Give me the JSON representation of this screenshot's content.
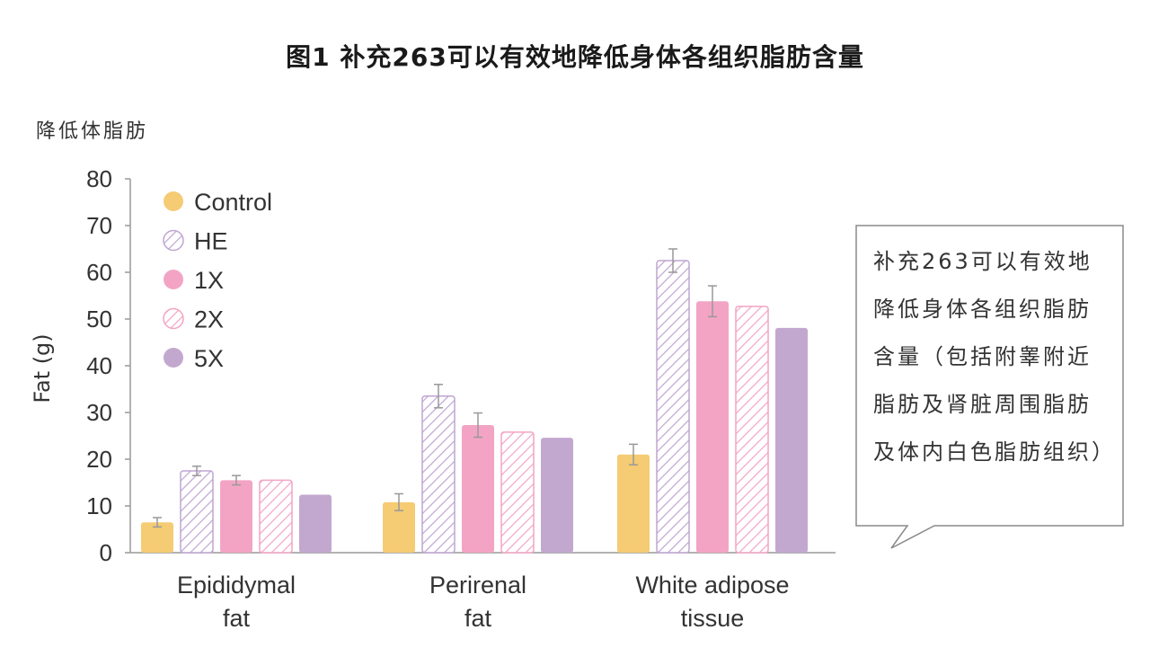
{
  "figure_title": "图1 补充263可以有效地降低身体各组织脂肪含量",
  "subtitle": "降低体脂肪",
  "callout_text": "补充263可以有效地降低身体各组织脂肪含量（包括附睾附近脂肪及肾脏周围脂肪及体内白色脂肪组织）",
  "colors": {
    "Control": "#f5cb74",
    "HE": "#bfa5d2",
    "1X": "#f3a4c4",
    "2X": "#f3a4c4",
    "5X": "#c2a8cf",
    "axis": "#999999",
    "error_bar": "#999999"
  },
  "chart_data": {
    "type": "bar",
    "ylabel": "Fat (g)",
    "ylim": [
      0,
      80
    ],
    "yticks": [
      0,
      10,
      20,
      30,
      40,
      50,
      60,
      70,
      80
    ],
    "grid": false,
    "legend_position": "top-left",
    "categories": [
      [
        "Epididymal",
        "fat"
      ],
      [
        "Perirenal",
        "fat"
      ],
      [
        "White adipose",
        "tissue"
      ]
    ],
    "series": [
      {
        "name": "Control",
        "pattern": "solid",
        "values": [
          6.5,
          10.8,
          21.0
        ],
        "errors": [
          1.0,
          1.8,
          2.2
        ]
      },
      {
        "name": "HE",
        "pattern": "hatched",
        "values": [
          17.5,
          33.5,
          62.5
        ],
        "errors": [
          1.0,
          2.5,
          2.5
        ]
      },
      {
        "name": "1X",
        "pattern": "solid",
        "values": [
          15.5,
          27.3,
          53.8
        ],
        "errors": [
          1.0,
          2.6,
          3.3
        ]
      },
      {
        "name": "2X",
        "pattern": "hatched",
        "values": [
          15.5,
          25.8,
          52.7
        ],
        "errors": [
          0,
          0,
          0
        ]
      },
      {
        "name": "5X",
        "pattern": "solid",
        "values": [
          12.4,
          24.6,
          48.1
        ],
        "errors": [
          0,
          0,
          0
        ]
      }
    ]
  }
}
